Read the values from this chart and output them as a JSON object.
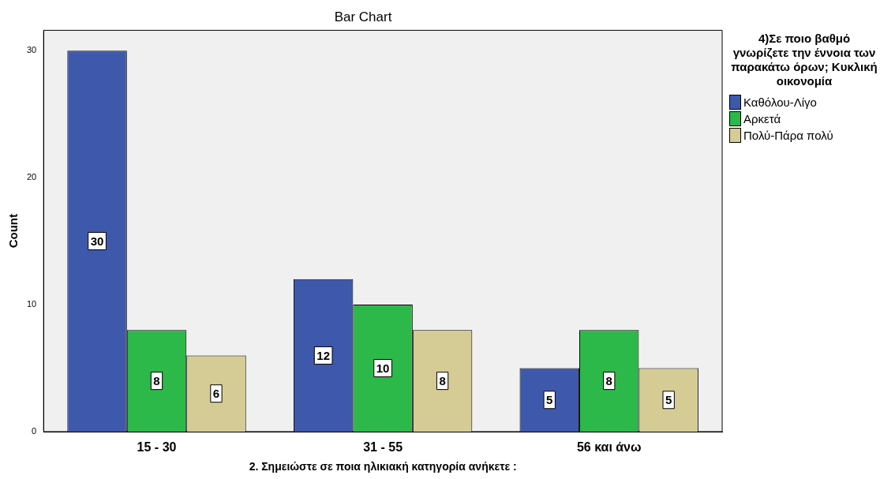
{
  "chart_data": {
    "type": "bar",
    "title": "Bar Chart",
    "xlabel": "2. Σημειώστε σε ποια ηλικιακή κατηγορία ανήκετε :",
    "ylabel": "Count",
    "legend_title": "4)Σε ποιο βαθμό γνωρίζετε  την έννοια των παρακάτω όρων; Κυκλική οικονομία",
    "categories": [
      "15 - 30",
      "31 - 55",
      "56 και άνω"
    ],
    "series": [
      {
        "name": "Καθόλου-Λίγο",
        "color": "#3e58ac",
        "values": [
          30,
          12,
          5
        ]
      },
      {
        "name": "Αρκετά",
        "color": "#2db84a",
        "values": [
          8,
          10,
          8
        ]
      },
      {
        "name": "Πολύ-Πάρα πολύ",
        "color": "#d4cc94",
        "values": [
          6,
          8,
          5
        ]
      }
    ],
    "ylim": [
      0,
      31.6
    ],
    "yticks": [
      0,
      10,
      20,
      30
    ],
    "legend": "right",
    "data_labels": true
  }
}
